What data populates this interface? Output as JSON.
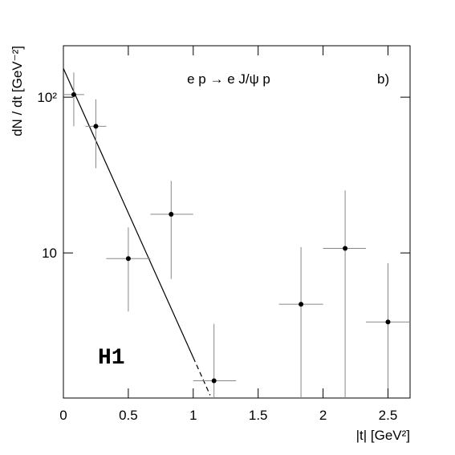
{
  "chart_data": {
    "type": "scatter",
    "x_label": "|t|  [GeV²]",
    "y_label": "dN / dt  [GeV⁻²]",
    "annotations": [
      "e p → e J/ψ p",
      "b)",
      "H1"
    ],
    "x": [
      0.08,
      0.25,
      0.5,
      0.83,
      1.16,
      1.83,
      2.17,
      2.5
    ],
    "values": [
      104,
      65,
      9.2,
      17.7,
      1.51,
      4.68,
      10.7,
      3.6
    ],
    "x_low": [
      0,
      0.17,
      0.33,
      0.67,
      1.0,
      1.66,
      2.0,
      2.33
    ],
    "x_high": [
      0.16,
      0.33,
      0.67,
      1.0,
      1.33,
      2.0,
      2.33,
      2.67
    ],
    "y_low": [
      65,
      35,
      4.2,
      6.8,
      0,
      0,
      0,
      0
    ],
    "y_high": [
      144,
      97,
      14.6,
      29,
      3.5,
      10.9,
      25.2,
      8.6
    ],
    "fit": {
      "solid": {
        "x": [
          0,
          1.0
        ],
        "y": [
          153,
          2.13
        ]
      },
      "dashed": {
        "x": [
          1.0,
          1.13
        ],
        "y": [
          2.13,
          1.22
        ]
      }
    },
    "color": "#000000",
    "ylog": true,
    "xlim": [
      0,
      2.67
    ],
    "ylim": [
      1.17,
      214
    ],
    "xticks": [
      0,
      0.5,
      1,
      1.5,
      2,
      2.5
    ],
    "yticks": [
      10,
      {
        "value": 100,
        "label": "10²"
      }
    ]
  }
}
